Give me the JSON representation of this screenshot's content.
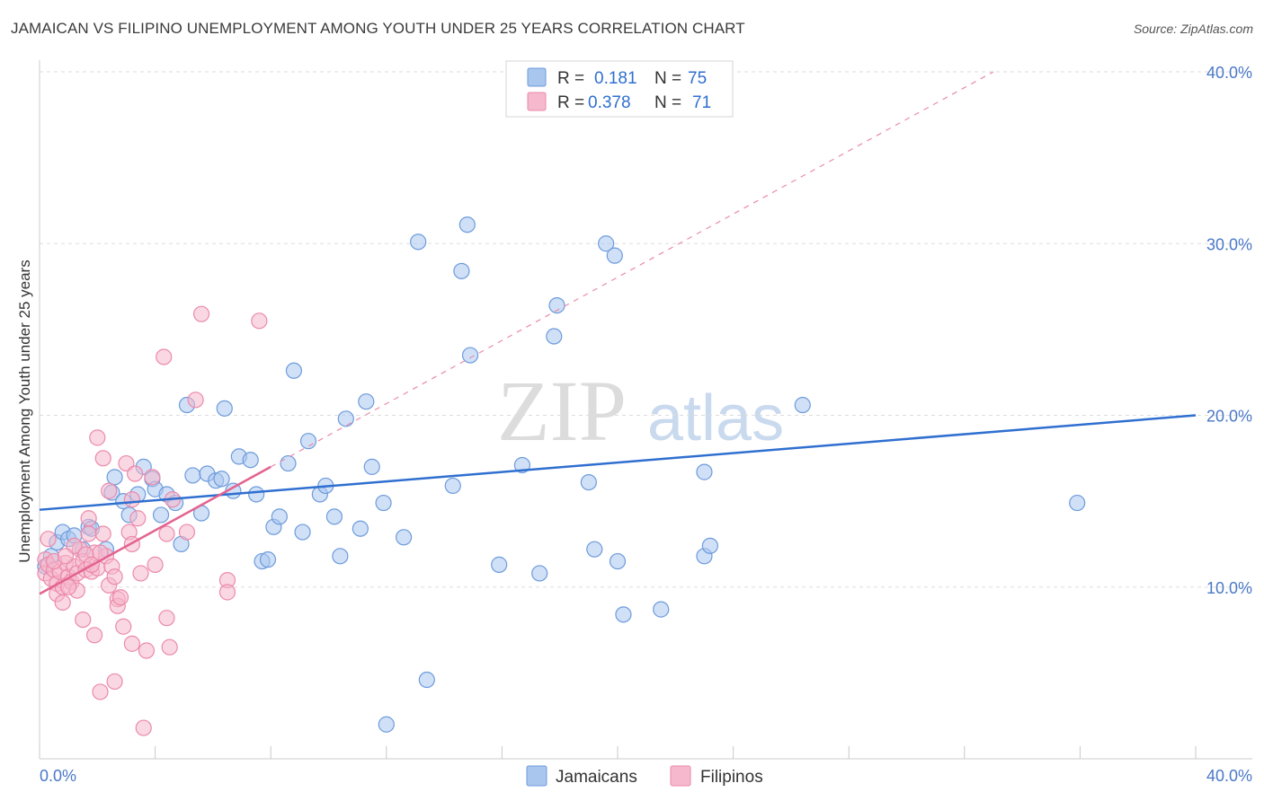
{
  "title": "JAMAICAN VS FILIPINO UNEMPLOYMENT AMONG YOUTH UNDER 25 YEARS CORRELATION CHART",
  "source": "Source: ZipAtlas.com",
  "watermark": {
    "part1": "ZIP",
    "part2": "atlas"
  },
  "colors": {
    "jamaicans_fill": "#a9c6ee",
    "jamaicans_stroke": "#6d9bdc",
    "jamaicans_line": "#2f6fd0",
    "filipinos_fill": "#f6b8cc",
    "filipinos_stroke": "#eb8aaa",
    "filipinos_line": "#e3638f",
    "tick_label": "#4a78c8"
  },
  "legend_top": [
    {
      "r_label": "R =",
      "r_value": "0.181",
      "n_label": "N =",
      "n_value": "75"
    },
    {
      "r_label": "R =",
      "r_value": "0.378",
      "n_label": "N =",
      "n_value": "71"
    }
  ],
  "chart_data": {
    "type": "scatter",
    "title": "JAMAICAN VS FILIPINO UNEMPLOYMENT AMONG YOUTH UNDER 25 YEARS CORRELATION CHART",
    "xlabel": "",
    "ylabel": "Unemployment Among Youth under 25 years",
    "xlim": [
      0,
      40
    ],
    "ylim": [
      0,
      40
    ],
    "x_tick_labels": [
      "0.0%",
      "40.0%"
    ],
    "y_ticks": [
      10,
      20,
      30,
      40
    ],
    "y_tick_labels": [
      "10.0%",
      "20.0%",
      "30.0%",
      "40.0%"
    ],
    "legend_position": "bottom-center",
    "series": [
      {
        "name": "Jamaicans",
        "r": 0.181,
        "n": 75,
        "trend": {
          "x0": 0,
          "y0": 14.5,
          "x1": 40,
          "y1": 20.0
        },
        "points": [
          [
            0.2,
            11.2
          ],
          [
            0.4,
            11.8
          ],
          [
            0.6,
            12.6
          ],
          [
            0.8,
            13.2
          ],
          [
            1.0,
            12.8
          ],
          [
            1.2,
            13.0
          ],
          [
            1.5,
            12.2
          ],
          [
            1.7,
            13.5
          ],
          [
            1.8,
            13.4
          ],
          [
            2.3,
            12.2
          ],
          [
            2.5,
            15.5
          ],
          [
            2.6,
            16.4
          ],
          [
            2.9,
            15.0
          ],
          [
            3.1,
            14.2
          ],
          [
            3.4,
            15.4
          ],
          [
            3.6,
            17.0
          ],
          [
            3.9,
            16.3
          ],
          [
            4.0,
            15.7
          ],
          [
            4.2,
            14.2
          ],
          [
            4.4,
            15.4
          ],
          [
            4.7,
            14.9
          ],
          [
            4.9,
            12.5
          ],
          [
            5.1,
            20.6
          ],
          [
            5.3,
            16.5
          ],
          [
            5.6,
            14.3
          ],
          [
            5.8,
            16.6
          ],
          [
            6.1,
            16.2
          ],
          [
            6.3,
            16.3
          ],
          [
            6.4,
            20.4
          ],
          [
            6.7,
            15.6
          ],
          [
            6.9,
            17.6
          ],
          [
            7.3,
            17.4
          ],
          [
            7.5,
            15.4
          ],
          [
            7.7,
            11.5
          ],
          [
            7.9,
            11.6
          ],
          [
            8.1,
            13.5
          ],
          [
            8.3,
            14.1
          ],
          [
            8.6,
            17.2
          ],
          [
            8.8,
            22.6
          ],
          [
            9.1,
            13.2
          ],
          [
            9.3,
            18.5
          ],
          [
            9.7,
            15.4
          ],
          [
            9.9,
            15.9
          ],
          [
            10.2,
            14.1
          ],
          [
            10.4,
            11.8
          ],
          [
            10.6,
            19.8
          ],
          [
            11.1,
            13.4
          ],
          [
            11.3,
            20.8
          ],
          [
            11.5,
            17.0
          ],
          [
            11.9,
            14.9
          ],
          [
            12.0,
            2.0
          ],
          [
            12.6,
            12.9
          ],
          [
            13.1,
            30.1
          ],
          [
            13.4,
            4.6
          ],
          [
            14.3,
            15.9
          ],
          [
            14.6,
            28.4
          ],
          [
            14.8,
            31.1
          ],
          [
            14.9,
            23.5
          ],
          [
            15.9,
            11.3
          ],
          [
            16.7,
            17.1
          ],
          [
            17.3,
            10.8
          ],
          [
            17.8,
            24.6
          ],
          [
            17.9,
            26.4
          ],
          [
            19.0,
            16.1
          ],
          [
            19.2,
            12.2
          ],
          [
            19.6,
            30.0
          ],
          [
            19.9,
            29.3
          ],
          [
            20.0,
            11.5
          ],
          [
            20.2,
            8.4
          ],
          [
            21.5,
            8.7
          ],
          [
            23.0,
            16.7
          ],
          [
            23.0,
            11.8
          ],
          [
            23.2,
            12.4
          ],
          [
            26.4,
            20.6
          ],
          [
            35.9,
            14.9
          ]
        ]
      },
      {
        "name": "Filipinos",
        "r": 0.378,
        "n": 71,
        "trend": {
          "x0": 0,
          "y0": 9.6,
          "x1": 8.0,
          "y1": 17.0
        },
        "trend_extension": {
          "x0": 8.0,
          "y0": 17.0,
          "x1": 33.0,
          "y1": 40.0
        },
        "points": [
          [
            0.2,
            11.6
          ],
          [
            0.2,
            10.8
          ],
          [
            0.3,
            11.3
          ],
          [
            0.3,
            12.8
          ],
          [
            0.4,
            10.5
          ],
          [
            0.5,
            11.0
          ],
          [
            0.6,
            10.2
          ],
          [
            0.6,
            9.6
          ],
          [
            0.7,
            10.9
          ],
          [
            0.8,
            9.1
          ],
          [
            0.8,
            10.0
          ],
          [
            0.9,
            11.4
          ],
          [
            1.0,
            10.6
          ],
          [
            1.1,
            10.3
          ],
          [
            1.2,
            11.2
          ],
          [
            1.3,
            10.8
          ],
          [
            1.3,
            9.8
          ],
          [
            1.4,
            12.2
          ],
          [
            1.5,
            11.5
          ],
          [
            1.5,
            8.1
          ],
          [
            1.6,
            11.0
          ],
          [
            1.7,
            13.1
          ],
          [
            1.7,
            14.0
          ],
          [
            1.8,
            10.9
          ],
          [
            1.9,
            12.0
          ],
          [
            1.9,
            7.2
          ],
          [
            2.0,
            11.1
          ],
          [
            2.0,
            18.7
          ],
          [
            2.1,
            3.9
          ],
          [
            2.2,
            17.5
          ],
          [
            2.2,
            13.1
          ],
          [
            2.3,
            11.8
          ],
          [
            2.4,
            10.1
          ],
          [
            2.4,
            15.6
          ],
          [
            2.5,
            11.2
          ],
          [
            2.6,
            4.5
          ],
          [
            2.6,
            10.6
          ],
          [
            2.7,
            9.3
          ],
          [
            2.7,
            8.9
          ],
          [
            2.8,
            9.4
          ],
          [
            2.9,
            7.7
          ],
          [
            3.0,
            17.2
          ],
          [
            3.1,
            13.2
          ],
          [
            3.2,
            15.1
          ],
          [
            3.2,
            12.5
          ],
          [
            3.2,
            6.7
          ],
          [
            3.3,
            16.6
          ],
          [
            3.4,
            14.0
          ],
          [
            3.5,
            10.8
          ],
          [
            3.6,
            1.8
          ],
          [
            3.7,
            6.3
          ],
          [
            3.9,
            16.4
          ],
          [
            4.0,
            11.3
          ],
          [
            4.3,
            23.4
          ],
          [
            4.4,
            13.1
          ],
          [
            4.4,
            8.2
          ],
          [
            4.5,
            6.5
          ],
          [
            4.6,
            15.1
          ],
          [
            5.1,
            13.2
          ],
          [
            5.4,
            20.9
          ],
          [
            5.6,
            25.9
          ],
          [
            6.5,
            10.4
          ],
          [
            6.5,
            9.7
          ],
          [
            7.6,
            25.5
          ],
          [
            1.0,
            10.0
          ],
          [
            1.2,
            12.4
          ],
          [
            0.5,
            11.5
          ],
          [
            1.6,
            11.9
          ],
          [
            2.1,
            12.0
          ],
          [
            0.9,
            11.8
          ],
          [
            1.8,
            11.3
          ]
        ]
      }
    ]
  }
}
